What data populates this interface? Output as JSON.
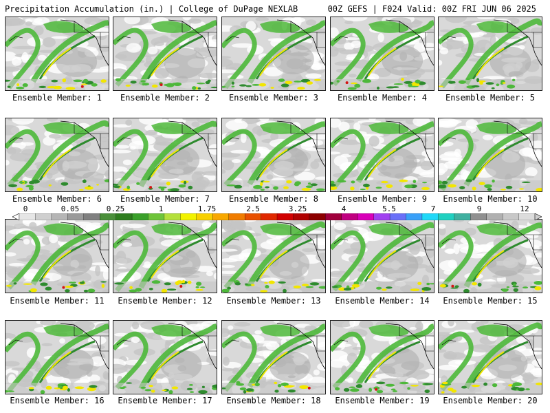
{
  "header": {
    "left": "Precipitation Accumulation (in.) | College of DuPage NEXLAB",
    "right": "00Z GEFS | F024 Valid: 00Z FRI JUN 06 2025"
  },
  "members": [
    "Ensemble Member: 1",
    "Ensemble Member: 2",
    "Ensemble Member: 3",
    "Ensemble Member: 4",
    "Ensemble Member: 5",
    "Ensemble Member: 6",
    "Ensemble Member: 7",
    "Ensemble Member: 8",
    "Ensemble Member: 9",
    "Ensemble Member: 10",
    "Ensemble Member: 11",
    "Ensemble Member: 12",
    "Ensemble Member: 13",
    "Ensemble Member: 14",
    "Ensemble Member: 15",
    "Ensemble Member: 16",
    "Ensemble Member: 17",
    "Ensemble Member: 18",
    "Ensemble Member: 19",
    "Ensemble Member: 20"
  ],
  "colorbar": {
    "labels": [
      "0",
      "0.05",
      "0.25",
      "1",
      "1.75",
      "2.5",
      "3.25",
      "4",
      "5.5",
      "7",
      "9",
      "12"
    ],
    "colors": [
      "#e6e6e6",
      "#cfcfcf",
      "#b5b5b5",
      "#9a9a9a",
      "#808080",
      "#4a8f3a",
      "#2e7d1e",
      "#3aa02a",
      "#6ec43a",
      "#b4e03c",
      "#f2f200",
      "#f8d000",
      "#f8a800",
      "#f07c00",
      "#e85000",
      "#e02800",
      "#d00000",
      "#b00000",
      "#8c0000",
      "#a0003c",
      "#c00080",
      "#d800b8",
      "#a040f0",
      "#6a70f8",
      "#3aa0f8",
      "#20d8f8",
      "#20d0c0",
      "#40b0a0",
      "#909090",
      "#b0b0b0",
      "#c8c8c8",
      "#dcdcdc"
    ]
  },
  "map_colors": {
    "ocean": "#d9d9d9",
    "light_gray": "#c4c4c4",
    "dark_gray": "#a9a9a9",
    "green_dark": "#2e8b2e",
    "green": "#4db83a",
    "yellow": "#f2e600",
    "orange": "#f5a000",
    "red": "#d41414",
    "white": "#ffffff",
    "coast": "#000000"
  }
}
